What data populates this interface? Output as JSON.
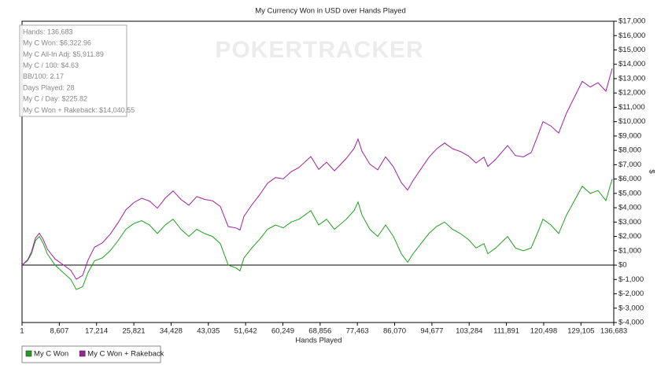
{
  "chart_data": {
    "type": "line",
    "title": "My Currency Won in USD over Hands Played",
    "x_label": "Hands Played",
    "y_label": "$",
    "watermark": "POKERTRACKER",
    "stats": [
      "Hands: 136,683",
      "My C Won: $6,322.96",
      "My C All-In Adj: $5,911.89",
      "My C / 100: $4.63",
      "BB/100: 2.17",
      "Days Played: 28",
      "My C / Day: $225.82",
      "My C Won + Rakeback: $14,040.55"
    ],
    "xlim": [
      1,
      136683
    ],
    "xticks": [
      1,
      {
        "value": 8607,
        "label": "8,607"
      },
      {
        "value": 17214,
        "label": "17,214"
      },
      {
        "value": 25821,
        "label": "25,821"
      },
      {
        "value": 34428,
        "label": "34,428"
      },
      {
        "value": 43035,
        "label": "43,035"
      },
      {
        "value": 51642,
        "label": "51,642"
      },
      {
        "value": 60249,
        "label": "60,249"
      },
      {
        "value": 68856,
        "label": "68,856"
      },
      {
        "value": 77463,
        "label": "77,463"
      },
      {
        "value": 86070,
        "label": "86,070"
      },
      {
        "value": 94677,
        "label": "94,677"
      },
      {
        "value": 103284,
        "label": "103,284"
      },
      {
        "value": 111891,
        "label": "111,891"
      },
      {
        "value": 120498,
        "label": "120,498"
      },
      {
        "value": 129105,
        "label": "129,105"
      },
      {
        "value": 136683,
        "label": "136,683"
      }
    ],
    "ylim": [
      -4000,
      17000
    ],
    "yticks": [
      {
        "value": -4000,
        "label": "$-4,000"
      },
      {
        "value": -3000,
        "label": "$-3,000"
      },
      {
        "value": -2000,
        "label": "$-2,000"
      },
      {
        "value": -1000,
        "label": "$-1,000"
      },
      {
        "value": 0,
        "label": "$0"
      },
      {
        "value": 1000,
        "label": "$1,000"
      },
      {
        "value": 2000,
        "label": "$2,000"
      },
      {
        "value": 3000,
        "label": "$3,000"
      },
      {
        "value": 4000,
        "label": "$4,000"
      },
      {
        "value": 5000,
        "label": "$5,000"
      },
      {
        "value": 6000,
        "label": "$6,000"
      },
      {
        "value": 7000,
        "label": "$7,000"
      },
      {
        "value": 8000,
        "label": "$8,000"
      },
      {
        "value": 9000,
        "label": "$9,000"
      },
      {
        "value": 10000,
        "label": "$10,000"
      },
      {
        "value": 11000,
        "label": "$11,000"
      },
      {
        "value": 12000,
        "label": "$12,000"
      },
      {
        "value": 13000,
        "label": "$13,000"
      },
      {
        "value": 14000,
        "label": "$14,000"
      },
      {
        "value": 15000,
        "label": "$15,000"
      },
      {
        "value": 16000,
        "label": "$16,000"
      },
      {
        "value": 17000,
        "label": "$17,000"
      }
    ],
    "x": [
      1,
      1273,
      2182,
      3090,
      3999,
      4908,
      5817,
      7635,
      9452,
      11270,
      12542,
      13996,
      15269,
      16723,
      18540,
      20358,
      22176,
      23993,
      25811,
      27629,
      29446,
      31264,
      33082,
      34899,
      36717,
      38535,
      40352,
      42170,
      43988,
      45805,
      47623,
      49441,
      50350,
      51259,
      53076,
      54894,
      56712,
      58529,
      60347,
      62165,
      63982,
      66709,
      68526,
      70344,
      72162,
      74888,
      76706,
      77615,
      78524,
      80341,
      82159,
      83977,
      85794,
      87612,
      89066,
      90338,
      92156,
      93974,
      95791,
      97609,
      99427,
      101244,
      103062,
      104880,
      106697,
      107606,
      109424,
      112150,
      113968,
      115786,
      117603,
      119421,
      120330,
      122147,
      123965,
      125783,
      127600,
      129418,
      131236,
      133053,
      134871,
      136325
    ],
    "series": [
      {
        "name": "My C Won",
        "color": "#1ea01e",
        "values": [
          0,
          300,
          800,
          1700,
          2000,
          1500,
          800,
          0,
          -500,
          -1000,
          -1700,
          -1500,
          -500,
          300,
          500,
          1000,
          1700,
          2500,
          2900,
          3100,
          2800,
          2200,
          2800,
          3200,
          2500,
          2000,
          2500,
          2200,
          2000,
          1500,
          0,
          -200,
          -400,
          500,
          1200,
          1800,
          2500,
          2800,
          2600,
          3000,
          3200,
          3800,
          2800,
          3200,
          2500,
          3200,
          3800,
          4400,
          3500,
          2500,
          2000,
          2800,
          2000,
          800,
          200,
          800,
          1500,
          2200,
          2700,
          3000,
          2500,
          2200,
          1800,
          1200,
          1500,
          800,
          1200,
          2000,
          1200,
          1000,
          1200,
          2500,
          3200,
          2800,
          2200,
          3500,
          4500,
          5500,
          5000,
          5200,
          4500,
          6000
        ]
      },
      {
        "name": "My C Won + Rakeback",
        "color": "#a020a0",
        "values": [
          0,
          370,
          920,
          1875,
          2226,
          1777,
          1129,
          431,
          34,
          -363,
          -991,
          -709,
          363,
          1245,
          1548,
          2150,
          2953,
          3856,
          4358,
          4661,
          4464,
          3966,
          4669,
          5172,
          4575,
          4177,
          4780,
          4583,
          4485,
          4088,
          2691,
          2593,
          2445,
          3396,
          4199,
          4902,
          5704,
          6107,
          6010,
          6512,
          6815,
          7569,
          6672,
          7174,
          6577,
          7431,
          8134,
          8785,
          7937,
          7039,
          6642,
          7545,
          6847,
          5750,
          5232,
          5904,
          6707,
          7510,
          8112,
          8515,
          8118,
          7920,
          7623,
          7126,
          7528,
          6880,
          7383,
          8337,
          7639,
          7542,
          7845,
          9247,
          9999,
          9701,
          9204,
          10607,
          11709,
          12812,
          12415,
          12718,
          12120,
          13702
        ]
      }
    ]
  }
}
